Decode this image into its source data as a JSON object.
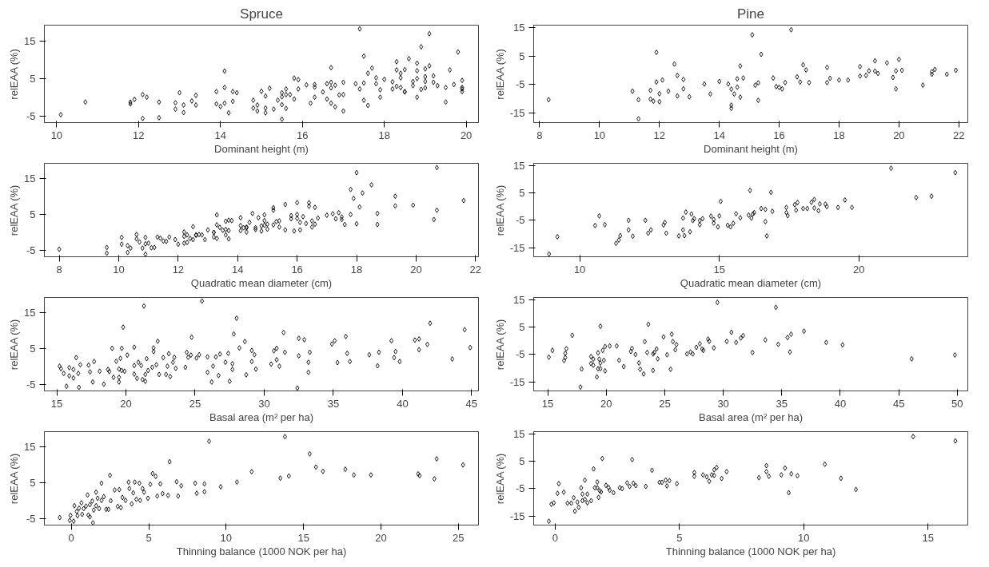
{
  "chart_data": [
    {
      "type": "scatter",
      "title": "Spruce",
      "xlabel": "Dominant height (m)",
      "ylabel": "relEAA (%)",
      "marker": "diamond",
      "color": "#000000",
      "xlim": [
        9.7,
        20.3
      ],
      "ylim": [
        -6.8,
        19.3
      ],
      "xticks": [
        10,
        12,
        14,
        16,
        18,
        20
      ],
      "yticks": [
        -5,
        5,
        15
      ],
      "x": [
        10.1,
        10.7,
        11.8,
        11.8,
        11.9,
        12.1,
        12.2,
        12.1,
        12.5,
        12.5,
        12.9,
        12.9,
        13.0,
        13.1,
        13.1,
        13.3,
        13.4,
        13.4,
        13.9,
        13.9,
        14.0,
        14.1,
        14.1,
        14.1,
        14.2,
        14.3,
        14.3,
        14.4,
        14.8,
        14.8,
        14.9,
        14.9,
        15.0,
        15.1,
        15.1,
        15.1,
        15.2,
        15.3,
        15.4,
        15.5,
        15.5,
        15.5,
        15.5,
        15.6,
        15.6,
        15.6,
        15.7,
        15.8,
        15.8,
        15.9,
        15.9,
        16.1,
        16.2,
        16.3,
        16.3,
        16.3,
        16.5,
        16.6,
        16.6,
        16.7,
        16.7,
        16.7,
        16.7,
        16.8,
        16.8,
        16.9,
        17.0,
        17.0,
        17.0,
        17.3,
        17.4,
        17.4,
        17.5,
        17.5,
        17.5,
        17.6,
        17.6,
        17.7,
        17.8,
        17.8,
        17.9,
        17.9,
        18.0,
        18.2,
        18.2,
        18.3,
        18.3,
        18.3,
        18.4,
        18.4,
        18.4,
        18.5,
        18.5,
        18.5,
        18.6,
        18.7,
        18.7,
        18.8,
        18.8,
        18.8,
        18.8,
        18.9,
        18.9,
        19.0,
        19.0,
        19.0,
        19.0,
        19.1,
        19.1,
        19.2,
        19.2,
        19.3,
        19.5,
        19.5,
        19.6,
        19.7,
        19.8,
        19.9,
        19.9,
        19.9,
        19.9
      ],
      "values": [
        -4.7,
        -1.3,
        -1.3,
        -1.8,
        -0.6,
        0.7,
        0,
        -5.7,
        -1.3,
        -5.5,
        -3.2,
        -1.5,
        1.2,
        -4.1,
        -2.1,
        -1.0,
        0.5,
        -2.1,
        -1.8,
        1.5,
        -2.5,
        7.0,
        2.6,
        -1.6,
        -4.2,
        -1.1,
        1.5,
        1.2,
        -2.9,
        -0.8,
        -3.7,
        -2.1,
        1.6,
        -4.2,
        0.3,
        -2.9,
        2.4,
        -3.2,
        -0.8,
        -5.9,
        0.1,
        -2.0,
        1.2,
        0.7,
        2.2,
        -3.0,
        0.7,
        -0.5,
        5.1,
        4.7,
        2.2,
        3.3,
        -1.6,
        2.7,
        3.4,
        0,
        1.4,
        3.6,
        -0.5,
        7.9,
        -1.6,
        2.5,
        4.0,
        -2.6,
        3.2,
        0.6,
        4.0,
        -3.7,
        0.7,
        3.6,
        2.2,
        18.3,
        3.8,
        11,
        -0.8,
        6.4,
        -2.2,
        7.8,
        5.2,
        3.6,
        0,
        2,
        4.8,
        4.1,
        2.2,
        9.5,
        7.3,
        2.9,
        6.4,
        2.6,
        5.2,
        7.4,
        1.5,
        1.4,
        10.3,
        4.2,
        3.1,
        5.0,
        7.1,
        9.1,
        0,
        2.1,
        13.5,
        2.5,
        5.5,
        4.2,
        7.6,
        8.4,
        17,
        5.7,
        4.0,
        3.1,
        2.6,
        -1.3,
        7.3,
        3.4,
        12.1,
        2.6,
        2.2,
        1.5,
        4.5
      ]
    },
    {
      "type": "scatter",
      "title": "Pine",
      "xlabel": "Dominant height (m)",
      "ylabel": "relEAA (%)",
      "marker": "diamond",
      "color": "#000000",
      "xlim": [
        7.8,
        22.3
      ],
      "ylim": [
        -18.3,
        15.8
      ],
      "xticks": [
        8,
        10,
        12,
        14,
        16,
        18,
        20,
        22
      ],
      "yticks": [
        -15,
        -5,
        5,
        15
      ],
      "x": [
        8.3,
        11.1,
        11.3,
        11.3,
        11.7,
        11.7,
        11.8,
        11.9,
        11.9,
        12.0,
        12.0,
        12.1,
        12.3,
        12.5,
        12.6,
        12.6,
        12.8,
        12.8,
        13.0,
        13.5,
        13.7,
        14.0,
        14.3,
        14.4,
        14.4,
        14.4,
        14.5,
        14.6,
        14.6,
        14.7,
        14.7,
        14.8,
        15.1,
        15.2,
        15.3,
        15.3,
        15.4,
        15.8,
        15.9,
        16.0,
        16.1,
        16.2,
        16.4,
        16.6,
        16.7,
        16.8,
        16.9,
        17.0,
        17.6,
        17.6,
        17.7,
        18.0,
        18.3,
        18.7,
        18.7,
        18.9,
        19.0,
        19.2,
        19.2,
        19.3,
        19.6,
        19.8,
        19.9,
        19.9,
        20.0,
        20.1,
        20.8,
        21.1,
        21.1,
        21.2,
        21.6,
        21.9
      ],
      "values": [
        -10.3,
        -7.3,
        -10.3,
        -17,
        -7,
        -10.1,
        -10.8,
        6.3,
        -4.1,
        -8.2,
        -11,
        -3.4,
        -7.3,
        2.2,
        -1.8,
        -9,
        -3.2,
        -6.5,
        -9.3,
        -4.8,
        -8.3,
        -3.9,
        -4.8,
        -6.6,
        -13.3,
        -12.2,
        -8.3,
        -5.9,
        -3,
        1.5,
        -9.4,
        -2.7,
        12.4,
        -5.2,
        -10.5,
        -4.4,
        5.6,
        -2.7,
        -5.7,
        -6,
        -6.5,
        -4.3,
        14.2,
        -2.3,
        -4.1,
        1.9,
        0.1,
        -4.3,
        1,
        -4.3,
        -2.8,
        -3.4,
        -3.4,
        1.3,
        -2,
        -1.8,
        -0.2,
        3.3,
        -0.3,
        -1.1,
        2.6,
        -2.5,
        -0.2,
        -6.5,
        3.8,
        0,
        -5.2,
        -1.4,
        -0.5,
        0.3,
        -1.4,
        0
      ]
    },
    {
      "type": "scatter",
      "xlabel": "Quadratic mean diameter (cm)",
      "ylabel": "relEAA (%)",
      "marker": "diamond",
      "color": "#000000",
      "xlim": [
        7.5,
        22.1
      ],
      "ylim": [
        -6.8,
        19.3
      ],
      "xticks": [
        8,
        10,
        12,
        14,
        16,
        18,
        20,
        22
      ],
      "yticks": [
        -5,
        5,
        15
      ],
      "x": [
        8.0,
        9.6,
        9.6,
        10.1,
        10.1,
        10.3,
        10.3,
        10.4,
        10.6,
        10.6,
        10.7,
        10.8,
        10.9,
        10.9,
        10.9,
        11.0,
        11.1,
        11.2,
        11.3,
        11.4,
        11.5,
        11.6,
        11.7,
        11.9,
        12.0,
        12.2,
        12.2,
        12.2,
        12.3,
        12.3,
        12.4,
        12.5,
        12.5,
        12.6,
        12.6,
        12.7,
        12.8,
        12.9,
        13.0,
        13.2,
        13.2,
        13.2,
        13.3,
        13.3,
        13.3,
        13.4,
        13.5,
        13.6,
        13.6,
        13.6,
        13.7,
        13.7,
        13.7,
        13.8,
        14.1,
        14.1,
        14.1,
        14.2,
        14.3,
        14.3,
        14.3,
        14.4,
        14.5,
        14.6,
        14.6,
        14.7,
        14.8,
        14.8,
        14.9,
        14.9,
        14.9,
        15.0,
        15.0,
        15.2,
        15.2,
        15.2,
        15.3,
        15.4,
        15.4,
        15.6,
        15.6,
        15.8,
        15.8,
        15.9,
        16.0,
        16.0,
        16.0,
        16.1,
        16.1,
        16.2,
        16.3,
        16.4,
        16.4,
        16.5,
        16.5,
        16.6,
        16.6,
        16.7,
        17.0,
        17.2,
        17.3,
        17.4,
        17.5,
        17.5,
        17.6,
        17.8,
        17.8,
        17.9,
        18.0,
        18.0,
        18.1,
        18.2,
        18.5,
        18.7,
        18.7,
        19.3,
        19.3,
        19.9,
        20.6,
        20.7,
        20.7,
        21.6
      ],
      "values": [
        -4.7,
        -4.2,
        -5.8,
        -1.4,
        -3.3,
        -5.6,
        -3.7,
        -4.4,
        -1.8,
        -0.6,
        -2.7,
        -4.4,
        -6.1,
        -1.4,
        -3.2,
        -3,
        -4.3,
        -4.2,
        -1.3,
        -1.6,
        -2.4,
        -2.5,
        -1.3,
        -2,
        -3.3,
        -1.1,
        0.1,
        -3,
        -2.8,
        -0.7,
        -1.7,
        1.6,
        -2,
        -0.8,
        -0.7,
        -0.6,
        -0.7,
        -2,
        0.7,
        0,
        -1.3,
        0,
        -1.7,
        4.9,
        2.1,
        1.4,
        0.6,
        0.8,
        3.1,
        -0.7,
        3.4,
        -1.8,
        0.5,
        3.3,
        1.9,
        0.5,
        4.1,
        1.3,
        1.3,
        0.1,
        1.5,
        2.8,
        5.3,
        1.3,
        0.8,
        4.1,
        0.4,
        1.8,
        3.3,
        4.9,
        2.0,
        0.9,
        2.3,
        6.9,
        2.1,
        6.2,
        3,
        3.2,
        1.5,
        0.7,
        7.8,
        4.7,
        3.8,
        0.4,
        3.9,
        8.3,
        5,
        0.7,
        2.8,
        4.4,
        2.5,
        7.3,
        8.3,
        1.5,
        3.2,
        2.3,
        7,
        4,
        4.8,
        5.2,
        3.8,
        5.5,
        4.3,
        3.6,
        2.2,
        5,
        12,
        9.5,
        16.7,
        2.4,
        7.1,
        11,
        13.3,
        5.3,
        2.2,
        10.1,
        7.4,
        7.6,
        3.6,
        6.2,
        18.1,
        8.9
      ]
    },
    {
      "type": "scatter",
      "xlabel": "Quadratic mean diameter (cm)",
      "ylabel": "relEAA (%)",
      "marker": "diamond",
      "color": "#000000",
      "xlim": [
        8.35,
        23.9
      ],
      "ylim": [
        -18.3,
        15.8
      ],
      "xticks": [
        10,
        15,
        20
      ],
      "yticks": [
        -15,
        -5,
        5,
        15
      ],
      "x": [
        8.9,
        9.2,
        10.55,
        10.7,
        10.9,
        11.3,
        11.4,
        11.45,
        11.75,
        11.75,
        11.9,
        12.35,
        12.45,
        12.55,
        13.0,
        13.05,
        13.1,
        13.55,
        13.7,
        13.7,
        13.75,
        13.8,
        13.95,
        14.0,
        14.05,
        14.1,
        14.3,
        14.3,
        14.4,
        14.7,
        14.8,
        14.8,
        14.95,
        15.0,
        15.05,
        15.3,
        15.4,
        15.5,
        15.6,
        15.75,
        16.05,
        16.1,
        16.15,
        16.2,
        16.25,
        16.5,
        16.65,
        16.65,
        16.7,
        16.85,
        16.9,
        17.4,
        17.4,
        17.45,
        17.7,
        17.75,
        17.8,
        18.0,
        18.15,
        18.3,
        18.4,
        18.4,
        18.55,
        18.6,
        18.8,
        18.85,
        19.25,
        19.5,
        19.75,
        21.15,
        22.05,
        22.6,
        23.45
      ],
      "values": [
        -17.3,
        -11,
        -6.9,
        -3.4,
        -6.6,
        -13.4,
        -12.2,
        -10.6,
        -5,
        -8.5,
        -10.8,
        -5,
        -9.7,
        -8.5,
        -6.7,
        -5.8,
        -9.7,
        -10.7,
        -4.2,
        -8.5,
        -10.6,
        -2,
        -9.2,
        -2.7,
        -5.1,
        -4.4,
        -5.1,
        -6.6,
        -4.4,
        -3.5,
        -4.7,
        -6,
        -7.4,
        -3.4,
        1.9,
        -6.8,
        -7.4,
        -6.1,
        -2.6,
        -4.1,
        -3.1,
        5.9,
        -4.2,
        -2.7,
        -2.2,
        -0.7,
        -1,
        -5.5,
        -10.7,
        5.2,
        -1.7,
        -2.2,
        -0.3,
        -3.3,
        0.7,
        -1.3,
        1.5,
        -0.7,
        -0.7,
        1.6,
        -0.5,
        2.6,
        -1.5,
        1,
        0.9,
        0,
        -0.3,
        2.4,
        -0.3,
        14,
        3.3,
        3.8,
        12.4
      ]
    },
    {
      "type": "scatter",
      "xlabel": "Basal area (m² per ha)",
      "ylabel": "relEAA (%)",
      "marker": "diamond",
      "color": "#000000",
      "xlim": [
        14.1,
        45.5
      ],
      "ylim": [
        -6.8,
        19.3
      ],
      "xticks": [
        15,
        20,
        25,
        30,
        35,
        40,
        45
      ],
      "yticks": [
        -5,
        5,
        15
      ],
      "x": [
        15.2,
        15.3,
        15.5,
        15.7,
        15.9,
        15.9,
        16.2,
        16.2,
        16.4,
        16.55,
        16.6,
        16.7,
        17.3,
        17.4,
        17.6,
        17.7,
        18.1,
        18.4,
        18.7,
        18.8,
        19.0,
        19.1,
        19.3,
        19.5,
        19.5,
        19.5,
        19.6,
        19.7,
        19.7,
        19.8,
        19.9,
        20.1,
        20.6,
        20.6,
        20.6,
        20.8,
        20.9,
        21.1,
        21.2,
        21.3,
        21.4,
        21.4,
        21.5,
        21.6,
        21.9,
        22.0,
        22.0,
        22.2,
        22.3,
        22.4,
        22.7,
        22.9,
        23.0,
        23.1,
        23.2,
        23.4,
        23.5,
        23.6,
        24.3,
        24.4,
        24.5,
        24.7,
        24.75,
        25.1,
        25.3,
        25.5,
        25.9,
        25.9,
        26.2,
        26.3,
        26.5,
        26.7,
        26.8,
        27.2,
        27.4,
        27.5,
        27.7,
        27.8,
        27.7,
        28.0,
        28.2,
        28.6,
        28.7,
        29.1,
        29.1,
        29.3,
        29.4,
        30.5,
        30.7,
        30.9,
        30.9,
        31.1,
        31.4,
        31.5,
        32.4,
        32.5,
        32.5,
        32.9,
        33.2,
        33.2,
        33.3,
        34.9,
        35.1,
        35.3,
        35.9,
        36.0,
        36.2,
        37.6,
        38.2,
        38.3,
        39.2,
        39.4,
        39.5,
        39.8,
        40.9,
        41.2,
        41.2,
        41.8,
        42.0,
        43.6,
        44.5,
        44.9
      ],
      "values": [
        0.1,
        -0.6,
        -1.9,
        -5.5,
        -0.3,
        -2.6,
        -3.2,
        -0.8,
        2.5,
        -1.9,
        -5.8,
        0.5,
        0.4,
        -1.5,
        -4.3,
        1.4,
        -1.3,
        -4.9,
        -0.8,
        -1.4,
        5.1,
        -3,
        1.5,
        -0.7,
        -4.3,
        -3,
        2.3,
        5.1,
        -1.1,
        11,
        -1.3,
        3.2,
        5.4,
        -2.1,
        0.3,
        -3.3,
        1.2,
        0.3,
        -3.6,
        16.9,
        -2.2,
        -4.1,
        2.2,
        -1.1,
        -0.2,
        4.2,
        5.2,
        0.5,
        7.1,
        -2.2,
        2.5,
        -2.2,
        0.1,
        3.6,
        -2.8,
        1.2,
        2.6,
        -0.5,
        -0.2,
        4,
        2.6,
        3.2,
        8.2,
        2.4,
        3.3,
        18.3,
        -1.6,
        2.7,
        -4.3,
        0.1,
        2.7,
        -2.5,
        3.5,
        1.2,
        3.7,
        -4.1,
        -0.8,
        9.1,
        0.8,
        13.5,
        5.2,
        7,
        -2.3,
        4.5,
        1.4,
        3.3,
        -0.7,
        0.7,
        4.4,
        5.1,
        1.9,
        0.1,
        9.5,
        4,
        -6,
        7.9,
        3,
        7.5,
        -1.6,
        1.2,
        4,
        6.3,
        7.2,
        1.1,
        8.4,
        3.7,
        1.4,
        3.3,
        0.2,
        4,
        7.2,
        2.5,
        4.2,
        1.4,
        7.4,
        4.7,
        7.7,
        6.2,
        12.1,
        2.1,
        10.3,
        5.3
      ]
    },
    {
      "type": "scatter",
      "xlabel": "Basal area (m² per ha)",
      "ylabel": "relEAA (%)",
      "marker": "diamond",
      "color": "#000000",
      "xlim": [
        13.8,
        50.9
      ],
      "ylim": [
        -18.3,
        15.8
      ],
      "xticks": [
        15,
        20,
        25,
        30,
        35,
        40,
        45,
        50
      ],
      "yticks": [
        -15,
        -5,
        5,
        15
      ],
      "x": [
        15.1,
        15.4,
        16.4,
        16.5,
        16.5,
        16.6,
        17.1,
        17.9,
        17.8,
        18.7,
        18.7,
        18.9,
        18.9,
        19.2,
        19.3,
        19.3,
        19.4,
        19.5,
        19.5,
        19.5,
        19.7,
        19.8,
        19.9,
        19.9,
        20.3,
        20.9,
        21.1,
        21.5,
        22.1,
        22.2,
        22.5,
        22.8,
        22.9,
        23.2,
        23.3,
        23.5,
        23.6,
        24.0,
        24.1,
        24.3,
        24.4,
        24.0,
        24.9,
        25.2,
        25.5,
        25.6,
        25.7,
        25.9,
        26.0,
        26.9,
        27.2,
        27.4,
        27.7,
        28.0,
        28.2,
        28.3,
        28.7,
        28.8,
        29.2,
        29.5,
        30.3,
        30.7,
        31.1,
        31.5,
        31.7,
        32.5,
        33.6,
        34.7,
        34.5,
        35.5,
        35.7,
        35.8,
        36.9,
        38.8,
        40.2,
        46.1,
        49.8
      ],
      "values": [
        -6,
        -3.5,
        -7.2,
        -6.1,
        -4.6,
        -2.9,
        2,
        -10.3,
        -16.9,
        -8.3,
        -5.8,
        -6.7,
        -8.9,
        -13.2,
        -4.4,
        -10.2,
        -6.7,
        -8.1,
        5.3,
        -10.2,
        -3.5,
        -7.1,
        -11,
        -2.1,
        -1.9,
        -1.9,
        -7.1,
        -9.4,
        -3.9,
        -2.8,
        -5,
        -8.1,
        -10.4,
        -12.1,
        -0.3,
        -4.3,
        6,
        -4.8,
        -4.3,
        -3,
        -6.6,
        -10.8,
        1.4,
        -5.1,
        -10.4,
        2.4,
        -0.3,
        -3.3,
        -1.4,
        -4.8,
        -4.1,
        -4.8,
        -2.4,
        -1.1,
        -3,
        -3.5,
        0.6,
        -0.2,
        -2.6,
        14,
        -0.2,
        3.1,
        -0.6,
        1,
        1.9,
        -4.3,
        0.3,
        -1.3,
        12.2,
        1.2,
        -4.1,
        2.4,
        3.5,
        -0.6,
        -1.5,
        -6.6,
        -5.2
      ]
    },
    {
      "type": "scatter",
      "xlabel": "Thinning balance (1000 NOK per ha)",
      "ylabel": "relEAA (%)",
      "marker": "diamond",
      "color": "#000000",
      "xlim": [
        -1.74,
        26.3
      ],
      "ylim": [
        -6.8,
        19.3
      ],
      "xticks": [
        0,
        5,
        10,
        15,
        20,
        25
      ],
      "yticks": [
        -5,
        5,
        15
      ],
      "x": [
        -0.75,
        -0.1,
        -0.05,
        0.15,
        0.2,
        0.35,
        0.4,
        0.5,
        0.65,
        0.7,
        0.8,
        0.95,
        1.05,
        1.1,
        1.2,
        1.2,
        1.35,
        1.4,
        1.45,
        1.6,
        1.6,
        1.7,
        1.8,
        1.95,
        1.95,
        2.1,
        2.25,
        2.4,
        2.5,
        2.55,
        2.8,
        3.0,
        3.2,
        3.1,
        3.3,
        3.5,
        3.7,
        3.75,
        3.9,
        4.0,
        4.1,
        4.2,
        4.4,
        4.45,
        4.6,
        4.7,
        4.95,
        5.1,
        5.25,
        5.45,
        5.55,
        5.75,
        5.9,
        6.25,
        6.35,
        6.8,
        6.9,
        7.1,
        8.0,
        8.1,
        8.6,
        8.6,
        8.9,
        9.65,
        10.7,
        11.65,
        13.5,
        13.8,
        14.05,
        15.4,
        15.8,
        16.25,
        17.7,
        18.25,
        19.35,
        22.4,
        22.5,
        23.45,
        23.6,
        25.3
      ],
      "values": [
        -4.7,
        -5.5,
        -4.1,
        -5.7,
        -1.4,
        -3,
        -4.2,
        -2.1,
        -0.6,
        -3.8,
        -2.2,
        -1.5,
        1.6,
        -4,
        -1.1,
        -4.5,
        -0.1,
        -6.2,
        -2.6,
        2.4,
        -1.4,
        0.7,
        -2.2,
        0.1,
        4.9,
        1.1,
        -2.4,
        -2.4,
        7.1,
        0,
        3,
        -1.6,
        -1.9,
        3.1,
        0.9,
        0.1,
        5.2,
        3.4,
        -0.9,
        2.2,
        5.2,
        0.4,
        4.9,
        0.1,
        3.4,
        2.4,
        0.7,
        4.6,
        7.6,
        6.8,
        1.3,
        4.7,
        2.0,
        1.5,
        10.9,
        5.3,
        1.3,
        4.2,
        4.9,
        2.1,
        4.7,
        2.5,
        16.6,
        3.9,
        5.2,
        8.1,
        6.3,
        17.9,
        6.9,
        13.1,
        9.4,
        8.2,
        8.8,
        7.2,
        7.2,
        7.5,
        7,
        6.1,
        11.7,
        10
      ]
    },
    {
      "type": "scatter",
      "xlabel": "Thinning balance (1000 NOK per ha)",
      "ylabel": "relEAA (%)",
      "marker": "diamond",
      "color": "#000000",
      "xlim": [
        -0.86,
        16.6
      ],
      "ylim": [
        -18.3,
        15.8
      ],
      "xticks": [
        0,
        5,
        10,
        15
      ],
      "yticks": [
        -15,
        -5,
        5,
        15
      ],
      "x": [
        -0.25,
        -0.15,
        -0.05,
        0.1,
        0.15,
        0.35,
        0.5,
        0.65,
        0.75,
        0.8,
        0.9,
        0.95,
        1.05,
        1.1,
        1.1,
        1.2,
        1.2,
        1.3,
        1.3,
        1.45,
        1.55,
        1.6,
        1.7,
        1.7,
        1.75,
        1.8,
        1.9,
        1.85,
        2.05,
        2.15,
        2.2,
        2.35,
        2.6,
        2.7,
        2.9,
        3.0,
        3.1,
        3.15,
        3.25,
        3.65,
        3.9,
        4.2,
        4.3,
        4.45,
        4.5,
        4.6,
        4.9,
        5.6,
        5.6,
        5.95,
        6.1,
        6.2,
        6.3,
        6.4,
        6.4,
        6.5,
        6.7,
        6.9,
        8.2,
        8.5,
        8.5,
        8.6,
        9.1,
        9.25,
        9.4,
        9.5,
        9.75,
        10.85,
        11.5,
        12.1,
        14.4,
        16.1
      ],
      "values": [
        -16.9,
        -10.7,
        -10.2,
        -6.7,
        -3.2,
        -6.3,
        -10.3,
        -10.3,
        -8.3,
        -13.2,
        -9.9,
        -11.8,
        -4.7,
        -9.4,
        -7,
        -1.9,
        -8.9,
        -7,
        -10.2,
        -9.4,
        2.2,
        -4.7,
        -2.6,
        -4.7,
        -8.2,
        -5.8,
        6,
        -6.2,
        -3.8,
        -4.6,
        -5.6,
        -6.5,
        -4.7,
        -5,
        -2.9,
        -4.2,
        5.6,
        -3,
        -3.9,
        -4.2,
        1.7,
        -2.7,
        -2.7,
        -1.9,
        -4,
        -2.1,
        -3.2,
        0.9,
        -0.5,
        0,
        -0.7,
        -2.3,
        0,
        1.9,
        -0.2,
        2.7,
        -1.3,
        1.2,
        -1,
        3.4,
        1.2,
        -0.5,
        0,
        2.5,
        -6.5,
        0.4,
        -0.3,
        3.9,
        -1.2,
        -5.3,
        14,
        12.4
      ]
    }
  ]
}
